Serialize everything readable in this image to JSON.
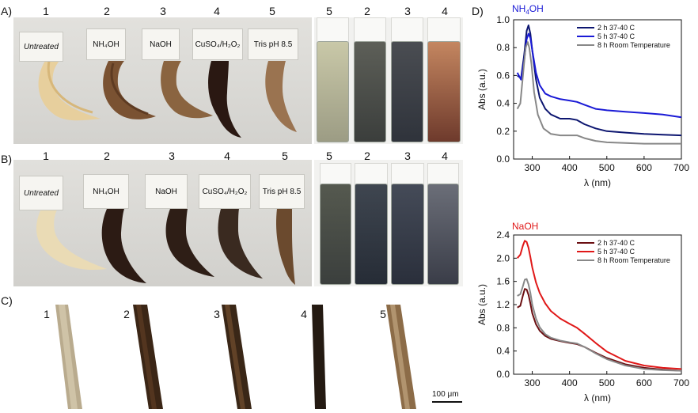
{
  "panel_labels": {
    "a": "A)",
    "b": "B)",
    "c": "C)",
    "d": "D)"
  },
  "photo_a": {
    "sample_numbers": [
      "1",
      "2",
      "3",
      "4",
      "5"
    ],
    "cards": [
      "Untreated",
      "NH₄OH",
      "NaOH",
      "CuSO₄/H₂O₂",
      "Tris pH 8.5"
    ],
    "vial_numbers": [
      "5",
      "2",
      "3",
      "4"
    ]
  },
  "photo_b": {
    "sample_numbers": [
      "1",
      "2",
      "3",
      "4",
      "5"
    ],
    "cards": [
      "Untreated",
      "NH₄OH",
      "NaOH",
      "CuSO₄/H₂O₂",
      "Tris pH 8.5"
    ],
    "vial_numbers": [
      "5",
      "2",
      "3",
      "4"
    ]
  },
  "micrographs": {
    "labels": [
      "1",
      "2",
      "3",
      "4",
      "5"
    ],
    "scale_bar": "100 μm"
  },
  "colors": {
    "nh4oh_title": "#1a1ad6",
    "naoh_title": "#e01818",
    "nh4_2h": "#0d1670",
    "nh4_5h": "#1a1ad6",
    "naoh_2h": "#6b0f12",
    "naoh_5h": "#e01818",
    "room": "#888888"
  },
  "chart_data": [
    {
      "type": "line",
      "title": "NH4OH",
      "title_main": "NH",
      "title_sub": "4",
      "title_tail": "OH",
      "xlabel": "λ (nm)",
      "ylabel": "Abs (a.u.)",
      "xlim": [
        250,
        700
      ],
      "ylim": [
        0.0,
        1.0
      ],
      "xticks": [
        300,
        400,
        500,
        600,
        700
      ],
      "yticks": [
        0.0,
        0.2,
        0.4,
        0.6,
        0.8,
        1.0
      ],
      "ytick_labels": [
        "0.0",
        "0.2",
        "0.4",
        "0.6",
        "0.8",
        "1.0"
      ],
      "legend_position": "top-right",
      "series": [
        {
          "name": "2 h 37-40 C",
          "color_key": "nh4_2h",
          "x": [
            260,
            270,
            278,
            285,
            290,
            295,
            300,
            310,
            320,
            335,
            350,
            375,
            400,
            420,
            440,
            470,
            500,
            550,
            600,
            650,
            700
          ],
          "y": [
            0.6,
            0.58,
            0.74,
            0.92,
            0.96,
            0.9,
            0.78,
            0.57,
            0.44,
            0.36,
            0.32,
            0.29,
            0.29,
            0.28,
            0.25,
            0.22,
            0.2,
            0.19,
            0.18,
            0.175,
            0.17
          ]
        },
        {
          "name": "5 h 37-40 C",
          "color_key": "nh4_5h",
          "x": [
            260,
            270,
            278,
            285,
            290,
            295,
            300,
            310,
            320,
            335,
            350,
            375,
            400,
            420,
            440,
            470,
            500,
            550,
            600,
            650,
            700
          ],
          "y": [
            0.62,
            0.57,
            0.7,
            0.86,
            0.9,
            0.87,
            0.78,
            0.62,
            0.53,
            0.47,
            0.45,
            0.43,
            0.42,
            0.41,
            0.39,
            0.36,
            0.35,
            0.34,
            0.33,
            0.32,
            0.3
          ]
        },
        {
          "name": "8 h Room Temperature",
          "color_key": "room",
          "x": [
            260,
            268,
            275,
            282,
            288,
            292,
            298,
            305,
            315,
            330,
            350,
            375,
            400,
            420,
            440,
            470,
            500,
            550,
            600,
            650,
            700
          ],
          "y": [
            0.36,
            0.4,
            0.6,
            0.8,
            0.84,
            0.8,
            0.68,
            0.48,
            0.32,
            0.22,
            0.18,
            0.17,
            0.17,
            0.17,
            0.15,
            0.13,
            0.12,
            0.115,
            0.11,
            0.11,
            0.11
          ]
        }
      ]
    },
    {
      "type": "line",
      "title": "NaOH",
      "xlabel": "λ (nm)",
      "ylabel": "Abs (a.u.)",
      "xlim": [
        250,
        700
      ],
      "ylim": [
        0.0,
        2.4
      ],
      "xticks": [
        300,
        400,
        500,
        600,
        700
      ],
      "yticks": [
        0.0,
        0.4,
        0.8,
        1.2,
        1.6,
        2.0,
        2.4
      ],
      "ytick_labels": [
        "0.0",
        "0.4",
        "0.8",
        "1.2",
        "1.6",
        "2.0",
        "2.4"
      ],
      "legend_position": "top-right",
      "series": [
        {
          "name": "2 h 37-40 C",
          "color_key": "naoh_2h",
          "x": [
            260,
            268,
            275,
            280,
            285,
            290,
            295,
            300,
            310,
            320,
            335,
            350,
            375,
            400,
            420,
            440,
            470,
            500,
            550,
            600,
            650,
            700
          ],
          "y": [
            1.15,
            1.18,
            1.36,
            1.47,
            1.46,
            1.37,
            1.22,
            1.05,
            0.86,
            0.75,
            0.66,
            0.61,
            0.57,
            0.54,
            0.52,
            0.47,
            0.37,
            0.28,
            0.17,
            0.11,
            0.08,
            0.06
          ]
        },
        {
          "name": "5 h 37-40 C",
          "color_key": "naoh_5h",
          "x": [
            260,
            268,
            275,
            280,
            285,
            290,
            295,
            300,
            310,
            320,
            335,
            350,
            375,
            400,
            420,
            440,
            470,
            500,
            550,
            600,
            650,
            700
          ],
          "y": [
            2.0,
            2.06,
            2.22,
            2.3,
            2.28,
            2.18,
            2.02,
            1.84,
            1.58,
            1.4,
            1.22,
            1.09,
            0.96,
            0.87,
            0.8,
            0.7,
            0.54,
            0.39,
            0.23,
            0.15,
            0.11,
            0.09
          ]
        },
        {
          "name": "8 h Room Temperature",
          "color_key": "room",
          "x": [
            260,
            268,
            275,
            280,
            285,
            290,
            295,
            300,
            310,
            320,
            335,
            350,
            375,
            400,
            420,
            440,
            470,
            500,
            550,
            600,
            650,
            700
          ],
          "y": [
            1.35,
            1.38,
            1.52,
            1.63,
            1.64,
            1.55,
            1.4,
            1.2,
            0.96,
            0.81,
            0.69,
            0.63,
            0.58,
            0.55,
            0.53,
            0.47,
            0.36,
            0.26,
            0.15,
            0.09,
            0.07,
            0.06
          ]
        }
      ]
    }
  ]
}
